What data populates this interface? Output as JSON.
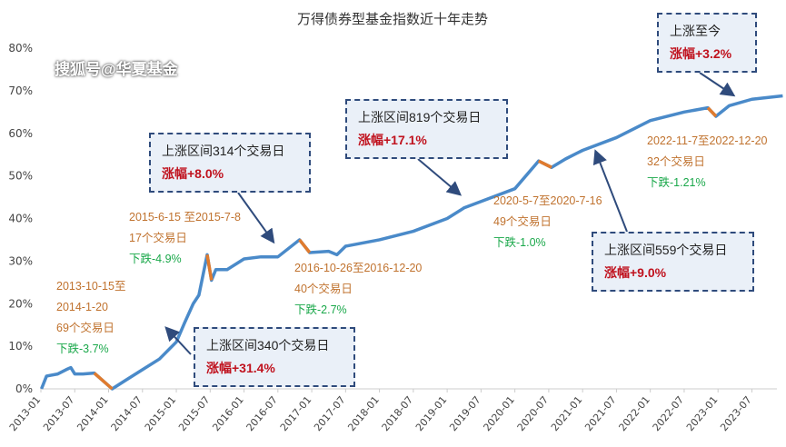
{
  "chart_data": {
    "type": "line",
    "title": "万得债券型基金指数近十年走势",
    "xlabel": "",
    "ylabel": "",
    "ylim": [
      0,
      80
    ],
    "yticks": [
      "0%",
      "10%",
      "20%",
      "30%",
      "40%",
      "50%",
      "60%",
      "70%",
      "80%"
    ],
    "xticks": [
      "2013-01",
      "2013-07",
      "2014-01",
      "2014-07",
      "2015-01",
      "2015-07",
      "2016-01",
      "2016-07",
      "2017-01",
      "2017-07",
      "2018-01",
      "2018-07",
      "2019-01",
      "2019-07",
      "2020-01",
      "2020-07",
      "2021-01",
      "2021-07",
      "2022-01",
      "2022-07",
      "2023-01",
      "2023-07"
    ],
    "grid": false,
    "colors": {
      "line": "#4a8ac9",
      "drawdown": "#e07b2e"
    },
    "series": [
      {
        "points": [
          [
            "2013-01-04",
            0
          ],
          [
            "2013-02-01",
            3
          ],
          [
            "2013-04-01",
            3.5
          ],
          [
            "2013-05-15",
            4.5
          ],
          [
            "2013-06-10",
            5
          ],
          [
            "2013-07-01",
            3.5
          ],
          [
            "2013-08-15",
            3.5
          ],
          [
            "2013-10-15",
            3.7
          ],
          [
            "2014-01-20",
            0
          ],
          [
            "2014-04-01",
            2
          ],
          [
            "2014-07-01",
            4.5
          ],
          [
            "2014-10-01",
            7
          ],
          [
            "2015-01-01",
            11
          ],
          [
            "2015-02-15",
            15.5
          ],
          [
            "2015-04-01",
            20
          ],
          [
            "2015-05-01",
            22
          ],
          [
            "2015-06-15",
            31.5
          ],
          [
            "2015-07-08",
            25.5
          ],
          [
            "2015-08-01",
            28
          ],
          [
            "2015-10-01",
            28
          ],
          [
            "2016-01-01",
            30.5
          ],
          [
            "2016-04-01",
            31
          ],
          [
            "2016-07-01",
            31
          ],
          [
            "2016-10-26",
            35
          ],
          [
            "2016-12-20",
            32
          ],
          [
            "2017-04-01",
            32.3
          ],
          [
            "2017-05-15",
            31.5
          ],
          [
            "2017-07-01",
            33.5
          ],
          [
            "2018-01-01",
            35
          ],
          [
            "2018-07-01",
            37
          ],
          [
            "2019-01-01",
            40
          ],
          [
            "2019-04-01",
            42.5
          ],
          [
            "2019-07-01",
            44
          ],
          [
            "2020-01-01",
            47
          ],
          [
            "2020-05-07",
            53.5
          ],
          [
            "2020-07-16",
            52
          ],
          [
            "2020-10-01",
            54
          ],
          [
            "2021-01-01",
            56
          ],
          [
            "2021-07-01",
            59
          ],
          [
            "2022-01-01",
            63
          ],
          [
            "2022-07-01",
            65
          ],
          [
            "2022-11-07",
            66
          ],
          [
            "2022-12-20",
            64
          ],
          [
            "2023-03-01",
            66.5
          ],
          [
            "2023-07-01",
            68
          ],
          [
            "2023-12-15",
            68.8
          ]
        ]
      }
    ],
    "drawdowns": [
      {
        "start": "2013-10-15",
        "end": "2014-01-20",
        "range": "2013-10-15至",
        "range2": "2014-1-20",
        "days": "69个交易日",
        "change": "下跌-3.7%"
      },
      {
        "start": "2015-06-15",
        "end": "2015-07-08",
        "range": "2015-6-15 至2015-7-8",
        "days": "17个交易日",
        "change": "下跌-4.9%"
      },
      {
        "start": "2016-10-26",
        "end": "2016-12-20",
        "range": "2016-10-26至2016-12-20",
        "days": "40个交易日",
        "change": "下跌-2.7%"
      },
      {
        "start": "2020-05-07",
        "end": "2020-07-16",
        "range": "2020-5-7至2020-7-16",
        "days": "49个交易日",
        "change": "下跌-1.0%"
      },
      {
        "start": "2022-11-07",
        "end": "2022-12-20",
        "range": "2022-11-7至2022-12-20",
        "days": "32个交易日",
        "change": "下跌-1.21%"
      }
    ],
    "rallies": [
      {
        "label": "上涨区间340个交易日",
        "gain": "涨幅+31.4%"
      },
      {
        "label": "上涨区间314个交易日",
        "gain": "涨幅+8.0%"
      },
      {
        "label": "上涨区间819个交易日",
        "gain": "涨幅+17.1%"
      },
      {
        "label": "上涨区间559个交易日",
        "gain": "涨幅+9.0%"
      },
      {
        "label": "上涨至今",
        "gain": "涨幅+3.2%"
      }
    ]
  },
  "watermark": "搜狐号@华夏基金"
}
